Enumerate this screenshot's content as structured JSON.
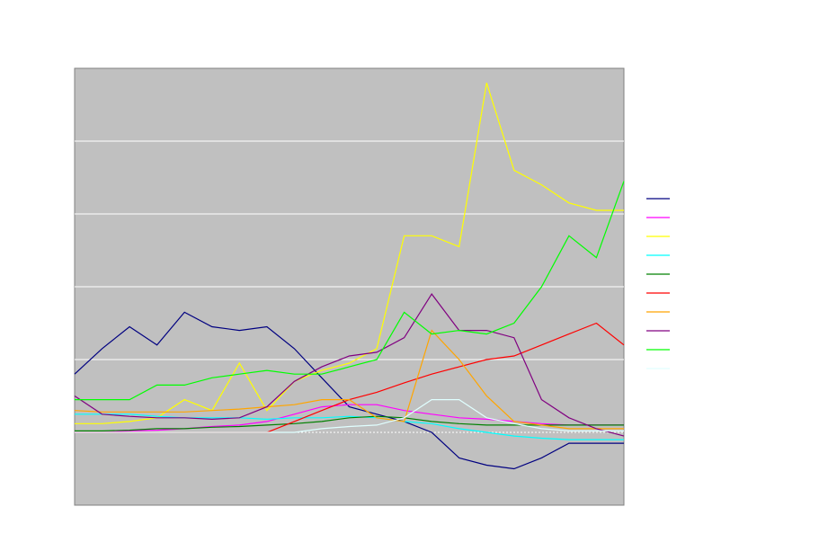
{
  "chart_data": {
    "type": "line",
    "title": "",
    "xlabel": "",
    "ylabel": "",
    "ylim": [
      -1,
      5
    ],
    "gridlines_y": [
      0,
      1,
      2,
      3,
      4
    ],
    "grid": true,
    "legend": "right",
    "plot_background": "#c0c0c0",
    "x": [
      0,
      5,
      10,
      15,
      20,
      25,
      30,
      35,
      40,
      45,
      50,
      55,
      60,
      65,
      70,
      75,
      80,
      85,
      90,
      95,
      100
    ],
    "series": [
      {
        "color": "#000080",
        "values": [
          0.8,
          1.15,
          1.45,
          1.2,
          1.65,
          1.45,
          1.4,
          1.45,
          1.15,
          0.75,
          0.35,
          0.25,
          0.15,
          0.0,
          -0.35,
          -0.45,
          -0.5,
          -0.35,
          -0.15,
          -0.15,
          -0.15
        ]
      },
      {
        "color": "#ff00ff",
        "values": [
          0.0,
          0.0,
          0.02,
          0.03,
          0.05,
          0.08,
          0.1,
          0.15,
          0.25,
          0.35,
          0.38,
          0.38,
          0.3,
          0.25,
          0.2,
          0.18,
          0.15,
          0.12,
          0.1,
          0.1,
          0.1
        ]
      },
      {
        "color": "#ffff00",
        "values": [
          0.12,
          0.12,
          0.15,
          0.2,
          0.45,
          0.3,
          0.95,
          0.3,
          0.7,
          0.85,
          0.95,
          1.15,
          2.7,
          2.7,
          2.55,
          4.8,
          3.6,
          3.4,
          3.15,
          3.05,
          3.05
        ]
      },
      {
        "color": "#00ffff",
        "values": [
          0.25,
          0.25,
          0.25,
          0.22,
          0.2,
          0.2,
          0.2,
          0.18,
          0.2,
          0.2,
          0.22,
          0.2,
          0.15,
          0.12,
          0.05,
          0.0,
          -0.05,
          -0.08,
          -0.1,
          -0.1,
          -0.1
        ]
      },
      {
        "color": "#008000",
        "values": [
          0.02,
          0.02,
          0.03,
          0.05,
          0.05,
          0.07,
          0.08,
          0.1,
          0.12,
          0.15,
          0.2,
          0.22,
          0.2,
          0.15,
          0.12,
          0.1,
          0.1,
          0.1,
          0.1,
          0.1,
          0.1
        ]
      },
      {
        "color": "#ff0000",
        "values": [
          0.0,
          0.0,
          0.0,
          0.0,
          0.0,
          0.0,
          0.0,
          0.0,
          0.15,
          0.3,
          0.45,
          0.55,
          0.68,
          0.8,
          0.9,
          1.0,
          1.05,
          1.2,
          1.35,
          1.5,
          1.2
        ]
      },
      {
        "color": "#ffa500",
        "values": [
          0.3,
          0.28,
          0.28,
          0.28,
          0.28,
          0.3,
          0.32,
          0.35,
          0.38,
          0.45,
          0.45,
          0.2,
          0.15,
          1.4,
          1.0,
          0.5,
          0.15,
          0.1,
          0.05,
          0.05,
          0.05
        ]
      },
      {
        "color": "#800080",
        "values": [
          0.5,
          0.25,
          0.22,
          0.2,
          0.2,
          0.18,
          0.2,
          0.35,
          0.7,
          0.9,
          1.05,
          1.1,
          1.3,
          1.9,
          1.4,
          1.4,
          1.3,
          0.45,
          0.2,
          0.05,
          -0.05
        ]
      },
      {
        "color": "#00ff00",
        "values": [
          0.45,
          0.45,
          0.45,
          0.65,
          0.65,
          0.75,
          0.8,
          0.85,
          0.8,
          0.8,
          0.9,
          1.0,
          1.65,
          1.35,
          1.4,
          1.35,
          1.5,
          2.0,
          2.7,
          2.4,
          3.45
        ]
      },
      {
        "color": "#e0ffff",
        "values": [
          0.0,
          0.0,
          0.0,
          0.0,
          0.0,
          0.0,
          0.0,
          0.0,
          0.0,
          0.05,
          0.08,
          0.1,
          0.2,
          0.45,
          0.45,
          0.2,
          0.12,
          0.05,
          0.02,
          0.02,
          0.02
        ]
      }
    ]
  }
}
